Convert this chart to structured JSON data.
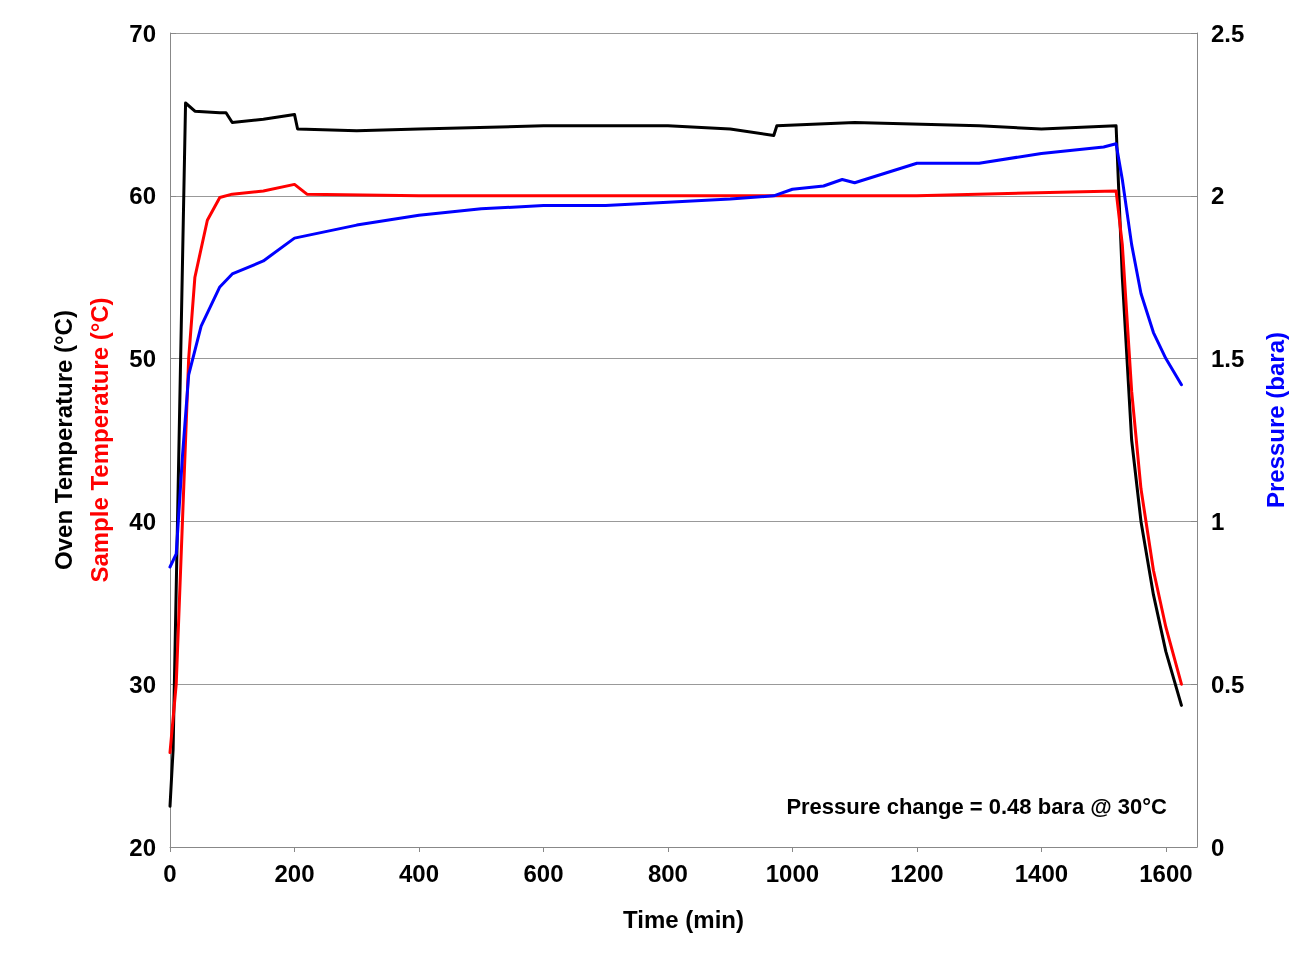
{
  "chart_data": {
    "type": "line",
    "xlabel": "Time (min)",
    "ylabel": "Oven Temperature (°C)",
    "y2label": "Pressure (bara)",
    "xlim": [
      0,
      1650
    ],
    "xticks": [
      0,
      200,
      400,
      600,
      800,
      1000,
      1200,
      1400,
      1600
    ],
    "ylim": [
      20,
      70
    ],
    "yticks": [
      20,
      30,
      40,
      50,
      60,
      70
    ],
    "y2lim": [
      0,
      2.5
    ],
    "y2ticks": [
      0,
      0.5,
      1,
      1.5,
      2,
      2.5
    ],
    "grid": "y",
    "legend": false,
    "marker": "none",
    "line_style": "solid",
    "annotations": [
      "Pressure change = 0.48 bara @ 30°C"
    ],
    "series": [
      {
        "color": "#000000",
        "x": [
          0,
          5,
          25,
          40,
          80,
          90,
          100,
          150,
          200,
          205,
          300,
          400,
          600,
          800,
          900,
          970,
          975,
          1100,
          1300,
          1400,
          1520,
          1530,
          1545,
          1560,
          1580,
          1600,
          1625
        ],
        "values": [
          22.5,
          26,
          65.7,
          65.2,
          65.1,
          65.1,
          64.5,
          64.7,
          65.0,
          64.1,
          64.0,
          64.1,
          64.3,
          64.3,
          64.1,
          63.7,
          64.3,
          64.5,
          64.3,
          64.1,
          64.3,
          55,
          45,
          40,
          35.5,
          32,
          28.7
        ]
      },
      {
        "name": "Sample Temperature (°C)",
        "color": "#ff0000",
        "x": [
          0,
          10,
          20,
          30,
          40,
          60,
          80,
          100,
          150,
          200,
          220,
          400,
          800,
          1200,
          1520,
          1530,
          1545,
          1560,
          1580,
          1600,
          1625
        ],
        "values": [
          25.8,
          30,
          40,
          50,
          55,
          58.5,
          59.9,
          60.1,
          60.3,
          60.7,
          60.1,
          60.0,
          60.0,
          60.0,
          60.3,
          57,
          48,
          42,
          37,
          33.5,
          30
        ]
      },
      {
        "color": "#0000ff",
        "axis": "y2",
        "x": [
          0,
          10,
          20,
          30,
          50,
          80,
          100,
          150,
          200,
          300,
          400,
          500,
          600,
          700,
          800,
          900,
          970,
          1000,
          1050,
          1080,
          1100,
          1150,
          1200,
          1300,
          1400,
          1500,
          1520,
          1530,
          1545,
          1560,
          1580,
          1600,
          1625
        ],
        "values": [
          0.86,
          0.9,
          1.2,
          1.45,
          1.6,
          1.72,
          1.76,
          1.8,
          1.87,
          1.91,
          1.94,
          1.96,
          1.97,
          1.97,
          1.98,
          1.99,
          2.0,
          2.02,
          2.03,
          2.05,
          2.04,
          2.07,
          2.1,
          2.1,
          2.13,
          2.15,
          2.16,
          2.05,
          1.85,
          1.7,
          1.58,
          1.5,
          1.42
        ]
      }
    ]
  }
}
